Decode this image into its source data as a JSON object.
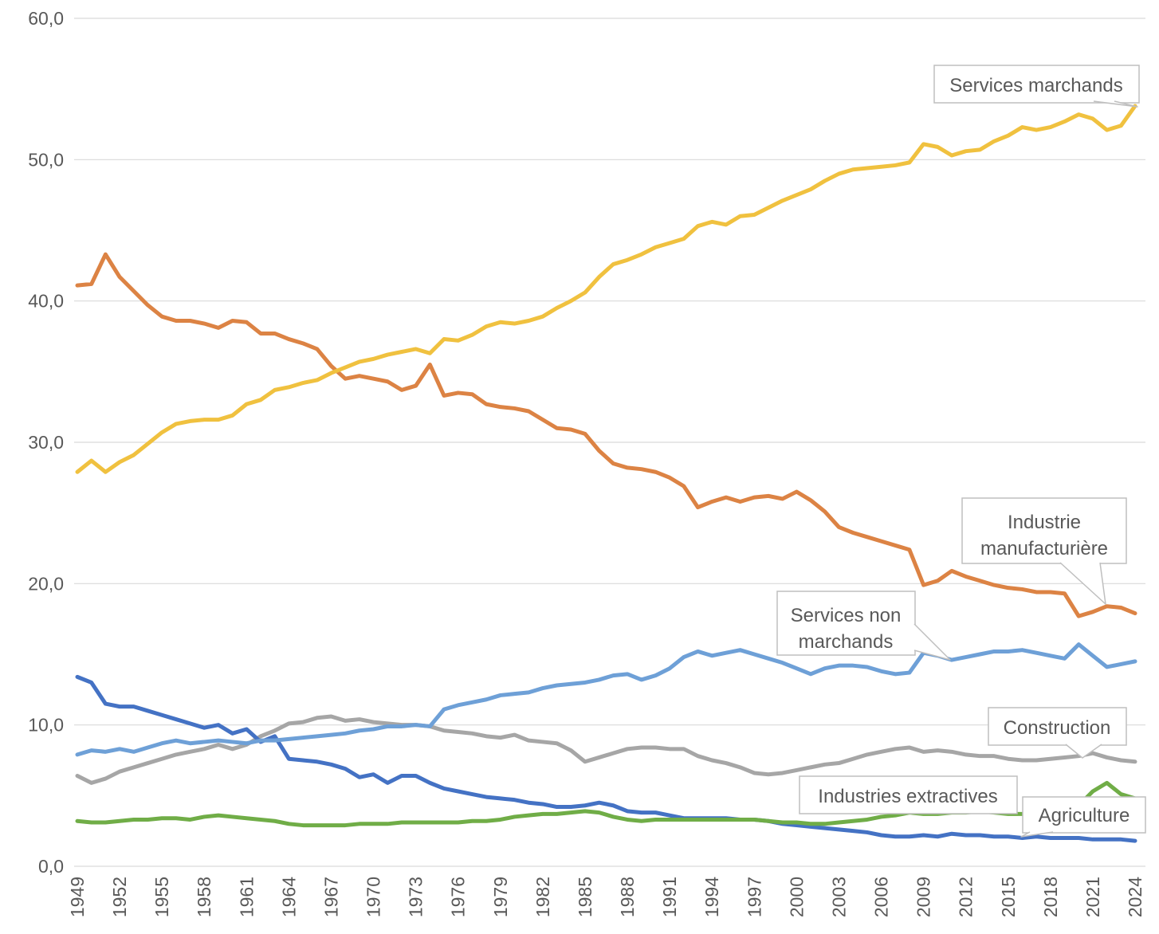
{
  "chart_data": {
    "type": "line",
    "title": "",
    "xlabel": "",
    "ylabel": "",
    "grid": "horizontal",
    "legend_position": "callout-labels-on-chart",
    "years": [
      1949,
      1950,
      1951,
      1952,
      1953,
      1954,
      1955,
      1956,
      1957,
      1958,
      1959,
      1960,
      1961,
      1962,
      1963,
      1964,
      1965,
      1966,
      1967,
      1968,
      1969,
      1970,
      1971,
      1972,
      1973,
      1974,
      1975,
      1976,
      1977,
      1978,
      1979,
      1980,
      1981,
      1982,
      1983,
      1984,
      1985,
      1986,
      1987,
      1988,
      1989,
      1990,
      1991,
      1992,
      1993,
      1994,
      1995,
      1996,
      1997,
      1998,
      1999,
      2000,
      2001,
      2002,
      2003,
      2004,
      2005,
      2006,
      2007,
      2008,
      2009,
      2010,
      2011,
      2012,
      2013,
      2014,
      2015,
      2016,
      2017,
      2018,
      2019,
      2020,
      2021,
      2022,
      2023,
      2024
    ],
    "x_axis": {
      "range": [
        1949,
        2024
      ],
      "ticks": [
        1949,
        1952,
        1955,
        1958,
        1961,
        1964,
        1967,
        1970,
        1973,
        1976,
        1979,
        1982,
        1985,
        1988,
        1991,
        1994,
        1997,
        2000,
        2003,
        2006,
        2009,
        2012,
        2015,
        2018,
        2021,
        2024
      ],
      "tick_labels": [
        "1949",
        "1952",
        "1955",
        "1958",
        "1961",
        "1964",
        "1967",
        "1970",
        "1973",
        "1976",
        "1979",
        "1982",
        "1985",
        "1988",
        "1991",
        "1994",
        "1997",
        "2000",
        "2003",
        "2006",
        "2009",
        "2012",
        "2015",
        "2018",
        "2021",
        "2024"
      ],
      "tick_rotation_deg": 90
    },
    "y_axis": {
      "range": [
        0,
        60
      ],
      "ticks": [
        0,
        10,
        20,
        30,
        40,
        50,
        60
      ],
      "tick_labels": [
        "0,0",
        "10,0",
        "20,0",
        "30,0",
        "40,0",
        "50,0",
        "60,0"
      ],
      "decimal_separator": "comma"
    },
    "series": [
      {
        "name": "Services marchands",
        "color": "#F0C13F",
        "values": [
          27.9,
          28.7,
          27.9,
          28.6,
          29.1,
          29.9,
          30.7,
          31.3,
          31.5,
          31.6,
          31.6,
          31.9,
          32.7,
          33.0,
          33.7,
          33.9,
          34.2,
          34.4,
          34.9,
          35.3,
          35.7,
          35.9,
          36.2,
          36.4,
          36.6,
          36.3,
          37.3,
          37.2,
          37.6,
          38.2,
          38.5,
          38.4,
          38.6,
          38.9,
          39.5,
          40.0,
          40.6,
          41.7,
          42.6,
          42.9,
          43.3,
          43.8,
          44.1,
          44.4,
          45.3,
          45.6,
          45.4,
          46.0,
          46.1,
          46.6,
          47.1,
          47.5,
          47.9,
          48.5,
          49.0,
          49.3,
          49.4,
          49.5,
          49.6,
          49.8,
          51.1,
          50.9,
          50.3,
          50.6,
          50.7,
          51.3,
          51.7,
          52.3,
          52.1,
          52.3,
          52.7,
          53.2,
          52.9,
          52.1,
          52.4,
          53.8
        ]
      },
      {
        "name": "Industrie manufacturière",
        "color": "#DC8344",
        "values": [
          41.1,
          41.2,
          43.3,
          41.7,
          40.7,
          39.7,
          38.9,
          38.6,
          38.6,
          38.4,
          38.1,
          38.6,
          38.5,
          37.7,
          37.7,
          37.3,
          37.0,
          36.6,
          35.4,
          34.5,
          34.7,
          34.5,
          34.3,
          33.7,
          34.0,
          35.5,
          33.3,
          33.5,
          33.4,
          32.7,
          32.5,
          32.4,
          32.2,
          31.6,
          31.0,
          30.9,
          30.6,
          29.4,
          28.5,
          28.2,
          28.1,
          27.9,
          27.5,
          26.9,
          25.4,
          25.8,
          26.1,
          25.8,
          26.1,
          26.2,
          26.0,
          26.5,
          25.9,
          25.1,
          24.0,
          23.6,
          23.3,
          23.0,
          22.7,
          22.4,
          19.9,
          20.2,
          20.9,
          20.5,
          20.2,
          19.9,
          19.7,
          19.6,
          19.4,
          19.4,
          19.3,
          17.7,
          18.0,
          18.4,
          18.3,
          17.9
        ]
      },
      {
        "name": "Services non marchands",
        "color": "#6EA0D7",
        "values": [
          7.9,
          8.2,
          8.1,
          8.3,
          8.1,
          8.4,
          8.7,
          8.9,
          8.7,
          8.8,
          8.9,
          8.8,
          8.7,
          8.9,
          8.9,
          9.0,
          9.1,
          9.2,
          9.3,
          9.4,
          9.6,
          9.7,
          9.9,
          9.9,
          10.0,
          9.9,
          11.1,
          11.4,
          11.6,
          11.8,
          12.1,
          12.2,
          12.3,
          12.6,
          12.8,
          12.9,
          13.0,
          13.2,
          13.5,
          13.6,
          13.2,
          13.5,
          14.0,
          14.8,
          15.2,
          14.9,
          15.1,
          15.3,
          15.0,
          14.7,
          14.4,
          14.0,
          13.6,
          14.0,
          14.2,
          14.2,
          14.1,
          13.8,
          13.6,
          13.7,
          15.1,
          14.9,
          14.6,
          14.8,
          15.0,
          15.2,
          15.2,
          15.3,
          15.1,
          14.9,
          14.7,
          15.7,
          14.9,
          14.1,
          14.3,
          14.5
        ]
      },
      {
        "name": "Construction",
        "color": "#A6A6A6",
        "values": [
          6.4,
          5.9,
          6.2,
          6.7,
          7.0,
          7.3,
          7.6,
          7.9,
          8.1,
          8.3,
          8.6,
          8.3,
          8.6,
          9.2,
          9.6,
          10.1,
          10.2,
          10.5,
          10.6,
          10.3,
          10.4,
          10.2,
          10.1,
          10.0,
          10.0,
          9.9,
          9.6,
          9.5,
          9.4,
          9.2,
          9.1,
          9.3,
          8.9,
          8.8,
          8.7,
          8.2,
          7.4,
          7.7,
          8.0,
          8.3,
          8.4,
          8.4,
          8.3,
          8.3,
          7.8,
          7.5,
          7.3,
          7.0,
          6.6,
          6.5,
          6.6,
          6.8,
          7.0,
          7.2,
          7.3,
          7.6,
          7.9,
          8.1,
          8.3,
          8.4,
          8.1,
          8.2,
          8.1,
          7.9,
          7.8,
          7.8,
          7.6,
          7.5,
          7.5,
          7.6,
          7.7,
          7.8,
          8.0,
          7.7,
          7.5,
          7.4
        ]
      },
      {
        "name": "Industries extractives",
        "color": "#70AD47",
        "values": [
          3.2,
          3.1,
          3.1,
          3.2,
          3.3,
          3.3,
          3.4,
          3.4,
          3.3,
          3.5,
          3.6,
          3.5,
          3.4,
          3.3,
          3.2,
          3.0,
          2.9,
          2.9,
          2.9,
          2.9,
          3.0,
          3.0,
          3.0,
          3.1,
          3.1,
          3.1,
          3.1,
          3.1,
          3.2,
          3.2,
          3.3,
          3.5,
          3.6,
          3.7,
          3.7,
          3.8,
          3.9,
          3.8,
          3.5,
          3.3,
          3.2,
          3.3,
          3.3,
          3.3,
          3.3,
          3.3,
          3.3,
          3.3,
          3.3,
          3.2,
          3.1,
          3.1,
          3.0,
          3.0,
          3.1,
          3.2,
          3.3,
          3.5,
          3.6,
          3.8,
          3.7,
          3.7,
          3.8,
          3.8,
          3.9,
          3.8,
          3.7,
          3.7,
          3.8,
          3.8,
          3.9,
          4.3,
          5.3,
          5.9,
          5.1,
          4.8
        ]
      },
      {
        "name": "Agriculture",
        "color": "#4472C4",
        "values": [
          13.4,
          13.0,
          11.5,
          11.3,
          11.3,
          11.0,
          10.7,
          10.4,
          10.1,
          9.8,
          10.0,
          9.4,
          9.7,
          8.8,
          9.2,
          7.6,
          7.5,
          7.4,
          7.2,
          6.9,
          6.3,
          6.5,
          5.9,
          6.4,
          6.4,
          5.9,
          5.5,
          5.3,
          5.1,
          4.9,
          4.8,
          4.7,
          4.5,
          4.4,
          4.2,
          4.2,
          4.3,
          4.5,
          4.3,
          3.9,
          3.8,
          3.8,
          3.6,
          3.4,
          3.4,
          3.4,
          3.4,
          3.3,
          3.3,
          3.2,
          3.0,
          2.9,
          2.8,
          2.7,
          2.6,
          2.5,
          2.4,
          2.2,
          2.1,
          2.1,
          2.2,
          2.1,
          2.3,
          2.2,
          2.2,
          2.1,
          2.1,
          2.0,
          2.1,
          2.0,
          2.0,
          2.0,
          1.9,
          1.9,
          1.9,
          1.8
        ]
      }
    ],
    "colors": {
      "gridline": "#D9D9D9",
      "axis_text": "#595959",
      "callout_border": "#BFBFBF",
      "callout_fill": "#FFFFFF"
    }
  },
  "callouts": {
    "services_marchands": {
      "lines": [
        "Services marchands"
      ]
    },
    "industrie_manufacturiere": {
      "lines": [
        "Industrie",
        "manufacturière"
      ]
    },
    "services_non_marchands": {
      "lines": [
        "Services non",
        "marchands"
      ]
    },
    "construction": {
      "lines": [
        "Construction"
      ]
    },
    "industries_extractives": {
      "lines": [
        "Industries extractives"
      ]
    },
    "agriculture": {
      "lines": [
        "Agriculture"
      ]
    }
  }
}
